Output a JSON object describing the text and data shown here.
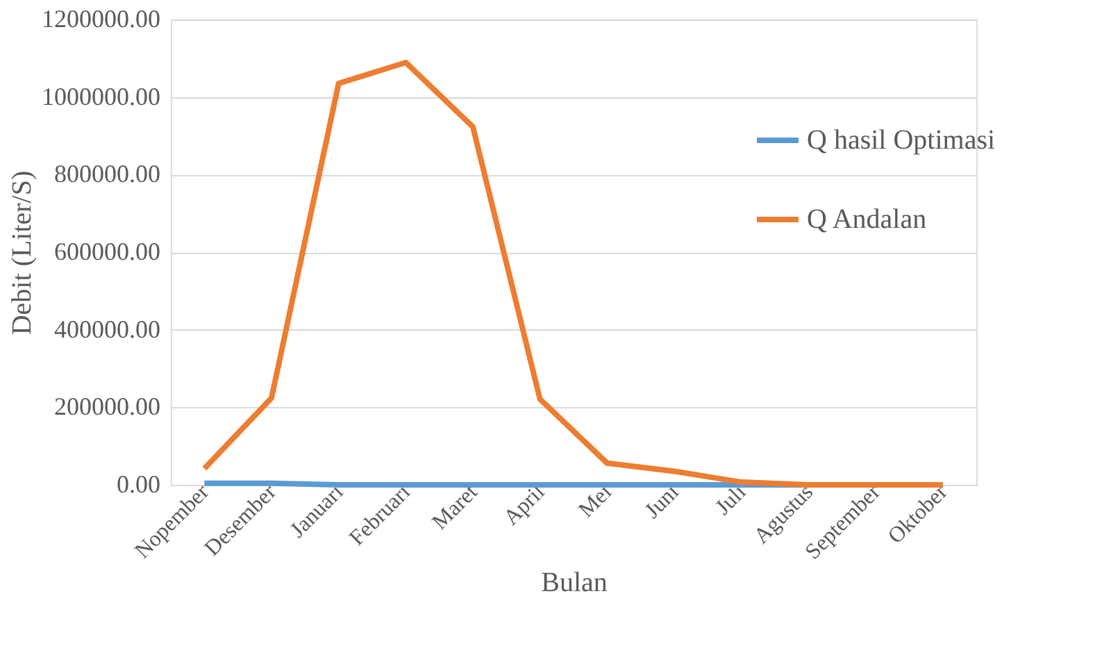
{
  "chart_data": {
    "type": "line",
    "xlabel": "Bulan",
    "ylabel": "Debit (Liter/S)",
    "categories": [
      "Nopember",
      "Desember",
      "Januari",
      "Februari",
      "Maret",
      "April",
      "Mei",
      "Juni",
      "Juli",
      "Agustus",
      "September",
      "Oktober"
    ],
    "series": [
      {
        "name": "Q hasil Optimasi",
        "color": "#5b9bd5",
        "values": [
          4000,
          4000,
          0,
          0,
          0,
          0,
          0,
          0,
          0,
          0,
          0,
          0
        ]
      },
      {
        "name": "Q Andalan",
        "color": "#ed7d31",
        "values": [
          42000,
          224000,
          1035000,
          1089000,
          923000,
          221000,
          56000,
          35000,
          7000,
          0,
          0,
          0
        ]
      }
    ],
    "ylim": [
      0,
      1200000
    ],
    "yticks": [
      {
        "value": 0,
        "label": "0.00"
      },
      {
        "value": 200000,
        "label": "200000.00"
      },
      {
        "value": 400000,
        "label": "400000.00"
      },
      {
        "value": 600000,
        "label": "600000.00"
      },
      {
        "value": 800000,
        "label": "800000.00"
      },
      {
        "value": 1000000,
        "label": "1000000.00"
      },
      {
        "value": 1200000,
        "label": "1200000.00"
      }
    ],
    "grid": "y",
    "legend": "top right",
    "marker": "none",
    "line_style": "solid"
  }
}
